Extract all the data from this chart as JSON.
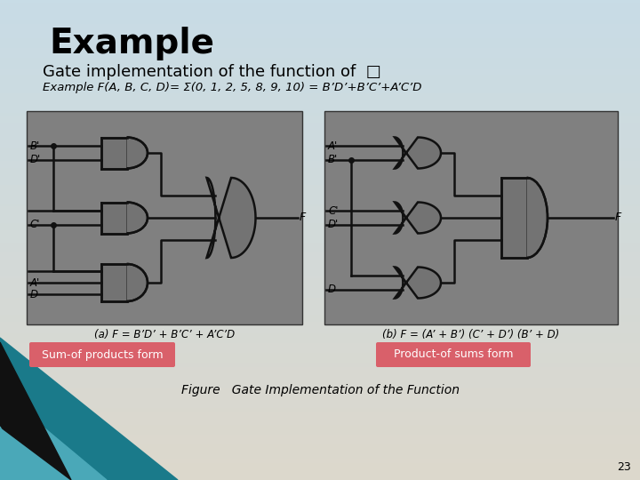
{
  "title": "Example",
  "subtitle": "Gate implementation of the function of  □",
  "example_line": "Example F(A, B, C, D)= Σ(0, 1, 2, 5, 8, 9, 10) = B’D’+B’C’+A’C’D",
  "label_left": "Sum-of products form",
  "label_right": "Product-of sums form",
  "figure_caption": "Figure   Gate Implementation of the Function",
  "page_number": "23",
  "bg_top_color": "#c8dce6",
  "bg_bottom_color": "#ddd8cc",
  "panel_color": "#808080",
  "label_bg_color": "#d9606a",
  "label_text_color": "#ffffff",
  "gate_fill": "#737373",
  "gate_edge": "#111111",
  "wire_color": "#111111",
  "diagram_a_caption": "(a) F = B’D’ + B’C’ + A’C’D",
  "diagram_b_caption": "(b) F = (A’ + B’) (C’ + D’) (B’ + D)"
}
